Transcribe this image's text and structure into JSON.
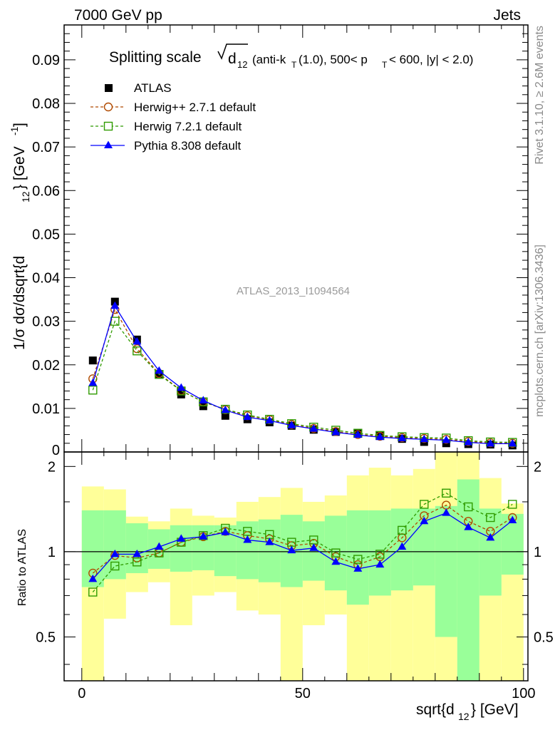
{
  "header": {
    "left": "7000 GeV pp",
    "right": "Jets"
  },
  "side_labels": {
    "rivet": "Rivet 3.1.10, ≥ 2.6M events",
    "mcplots": "mcplots.cern.ch [arXiv:1306.3436]"
  },
  "watermark": "ATLAS_2013_I1094564",
  "chart_data": [
    {
      "type": "scatter",
      "title_parts": {
        "prefix": "Splitting scale",
        "radical": "d",
        "radical_sub": "12",
        "suffix_a": "(anti-k",
        "suffix_a_sub": "T",
        "suffix_b": "(1.0), 500< p",
        "suffix_b_sub": "T",
        "suffix_c": "< 600, |y| < 2.0)"
      },
      "ylabel": "1/σ dσ/dsqrt{d₁₂} [GeV⁻¹]",
      "ylabel_parts": {
        "a": "1/σ dσ/dsqrt{d",
        "a_sub": "12",
        "b": "} [GeV",
        "b_sup": "-1",
        "c": "]"
      },
      "xlim": [
        -4,
        101
      ],
      "ylim": [
        0,
        0.098
      ],
      "y_ticks": [
        "0.01",
        "0.02",
        "0.03",
        "0.04",
        "0.05",
        "0.06",
        "0.07",
        "0.08",
        "0.09"
      ],
      "y_tick_values": [
        0.01,
        0.02,
        0.03,
        0.04,
        0.05,
        0.06,
        0.07,
        0.08,
        0.09
      ],
      "y_zero_label": "0",
      "x": [
        2.5,
        7.5,
        12.5,
        17.5,
        22.5,
        27.5,
        32.5,
        37.5,
        42.5,
        47.5,
        52.5,
        57.5,
        62.5,
        67.5,
        72.5,
        77.5,
        82.5,
        87.5,
        92.5,
        97.5
      ],
      "series": [
        {
          "name": "ATLAS",
          "color": "#000000",
          "marker": "square-filled",
          "values": [
            0.021,
            0.0345,
            0.0258,
            0.0178,
            0.0132,
            0.0105,
            0.0083,
            0.0075,
            0.0068,
            0.006,
            0.0051,
            0.0046,
            0.0044,
            0.0038,
            0.003,
            0.0023,
            0.002,
            0.0018,
            0.0017,
            0.0015
          ]
        },
        {
          "name": "Herwig++ 2.7.1 default",
          "color": "#b04a00",
          "marker": "circle-open",
          "dashed": true,
          "values": [
            0.0168,
            0.0327,
            0.0237,
            0.018,
            0.0141,
            0.0115,
            0.0097,
            0.0083,
            0.0074,
            0.0063,
            0.0054,
            0.0047,
            0.004,
            0.0036,
            0.0033,
            0.0031,
            0.0029,
            0.0024,
            0.0021,
            0.002
          ]
        },
        {
          "name": "Herwig 7.2.1 default",
          "color": "#2f9b00",
          "marker": "square-open",
          "dashed": true,
          "values": [
            0.0142,
            0.03,
            0.0232,
            0.0178,
            0.014,
            0.0115,
            0.0098,
            0.0085,
            0.0075,
            0.0065,
            0.0057,
            0.005,
            0.0043,
            0.0038,
            0.0035,
            0.0033,
            0.0032,
            0.0026,
            0.0023,
            0.0022
          ]
        },
        {
          "name": "Pythia 8.308 default",
          "color": "#0000ff",
          "marker": "triangle-filled",
          "values": [
            0.0158,
            0.0335,
            0.0253,
            0.0186,
            0.0147,
            0.0118,
            0.0096,
            0.008,
            0.0072,
            0.0061,
            0.0053,
            0.0045,
            0.0039,
            0.0034,
            0.0031,
            0.0029,
            0.0027,
            0.0022,
            0.0019,
            0.0019
          ]
        }
      ]
    },
    {
      "type": "scatter",
      "ylabel": "Ratio to ATLAS",
      "xlabel_parts": {
        "a": "sqrt{d",
        "a_sub": "12",
        "b": "} [GeV]"
      },
      "xlim": [
        -4,
        101
      ],
      "ylim": [
        0.35,
        2.25
      ],
      "y_scale": "log",
      "y_ticks": [
        "0.5",
        "1",
        "2"
      ],
      "y_tick_values": [
        0.5,
        1,
        2
      ],
      "x_ticks": [
        "0",
        "50",
        "100"
      ],
      "x_tick_values": [
        0,
        50,
        100
      ],
      "bin_edges": [
        0,
        5,
        10,
        15,
        20,
        25,
        30,
        35,
        40,
        45,
        50,
        55,
        60,
        65,
        70,
        75,
        80,
        85,
        90,
        95,
        100
      ],
      "band_inner": {
        "color": "#99ff99",
        "low": [
          0.75,
          0.8,
          0.84,
          0.87,
          0.85,
          0.86,
          0.82,
          0.8,
          0.78,
          0.75,
          0.79,
          0.73,
          0.65,
          0.7,
          0.73,
          0.76,
          0.5,
          0.35,
          0.7,
          0.83
        ],
        "high": [
          1.4,
          1.4,
          1.26,
          1.2,
          1.24,
          1.24,
          1.24,
          1.28,
          1.3,
          1.35,
          1.28,
          1.34,
          1.4,
          1.4,
          1.42,
          1.42,
          1.45,
          1.8,
          1.42,
          1.36
        ]
      },
      "band_outer": {
        "color": "#ffff99",
        "low": [
          0.35,
          0.58,
          0.72,
          0.78,
          0.55,
          0.7,
          0.72,
          0.62,
          0.6,
          0.35,
          0.55,
          0.6,
          0.35,
          0.35,
          0.35,
          0.35,
          0.35,
          0.35,
          0.35,
          0.35
        ],
        "high": [
          1.7,
          1.66,
          1.33,
          1.28,
          1.42,
          1.34,
          1.32,
          1.5,
          1.56,
          1.68,
          1.5,
          1.58,
          1.86,
          1.98,
          1.86,
          1.96,
          2.25,
          2.25,
          1.82,
          1.48
        ]
      },
      "series": [
        {
          "name": "Herwig++ 2.7.1 default",
          "color": "#b04a00",
          "marker": "circle-open",
          "dashed": true,
          "values": [
            0.84,
            0.97,
            0.95,
            0.99,
            1.08,
            1.13,
            1.18,
            1.14,
            1.11,
            1.05,
            1.07,
            0.96,
            0.9,
            0.96,
            1.12,
            1.34,
            1.46,
            1.28,
            1.18,
            1.32
          ]
        },
        {
          "name": "Herwig 7.2.1 default",
          "color": "#2f9b00",
          "marker": "square-open",
          "dashed": true,
          "values": [
            0.72,
            0.89,
            0.92,
            0.99,
            1.08,
            1.14,
            1.21,
            1.18,
            1.15,
            1.08,
            1.1,
            0.99,
            0.94,
            0.98,
            1.19,
            1.47,
            1.61,
            1.44,
            1.32,
            1.47
          ]
        },
        {
          "name": "Pythia 8.308 default",
          "color": "#0000ff",
          "marker": "triangle-filled",
          "values": [
            0.8,
            0.98,
            0.98,
            1.04,
            1.11,
            1.13,
            1.17,
            1.1,
            1.08,
            1.01,
            1.03,
            0.92,
            0.87,
            0.9,
            1.04,
            1.28,
            1.37,
            1.22,
            1.12,
            1.29
          ]
        }
      ]
    }
  ]
}
